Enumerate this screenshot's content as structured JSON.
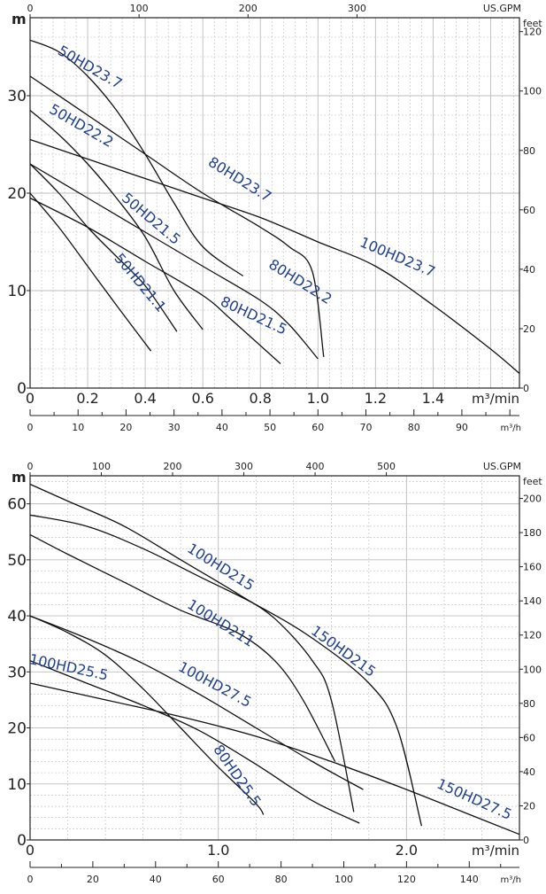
{
  "colors": {
    "curve": "#111111",
    "label": "#1f3f8f",
    "grid": "#bdbdbd",
    "text": "#222222"
  },
  "chart_data": [
    {
      "type": "line",
      "grid": true,
      "x_unit": "m³/min",
      "xlim": [
        0,
        1.7
      ],
      "x_ticks": [
        "0",
        "0.2",
        "0.4",
        "0.6",
        "0.8",
        "1.0",
        "1.2",
        "1.4"
      ],
      "x_tick_values": [
        0,
        0.2,
        0.4,
        0.6,
        0.8,
        1.0,
        1.2,
        1.4
      ],
      "y_unit": "m",
      "ylim": [
        0,
        38
      ],
      "y_ticks": [
        "0",
        "10",
        "20",
        "30"
      ],
      "y_tick_values": [
        0,
        10,
        20,
        30
      ],
      "top_unit": "US.GPM",
      "top_ticks": [
        "0",
        "100",
        "200",
        "300"
      ],
      "top_tick_values": [
        0,
        100,
        200,
        300
      ],
      "right_unit": "feet",
      "right_ticks": [
        "0",
        "20",
        "40",
        "60",
        "80",
        "100",
        "120"
      ],
      "right_tick_values": [
        0,
        20,
        40,
        60,
        80,
        100,
        120
      ],
      "bottom_unit": "m³/h",
      "bottom_ticks": [
        "0",
        "10",
        "20",
        "30",
        "40",
        "50",
        "60",
        "70",
        "80",
        "90"
      ],
      "bottom_tick_values": [
        0,
        10,
        20,
        30,
        40,
        50,
        60,
        70,
        80,
        90
      ],
      "series": [
        {
          "name": "50HD23.7",
          "label_at": [
            0.2,
            32.5
          ],
          "label_angle": 30,
          "points": [
            [
              0,
              35.7
            ],
            [
              0.1,
              34.5
            ],
            [
              0.2,
              32
            ],
            [
              0.3,
              28.5
            ],
            [
              0.4,
              24
            ],
            [
              0.5,
              19
            ],
            [
              0.6,
              14.5
            ],
            [
              0.74,
              11.5
            ]
          ]
        },
        {
          "name": "50HD22.2",
          "label_at": [
            0.17,
            26.5
          ],
          "label_angle": 30,
          "points": [
            [
              0,
              28.5
            ],
            [
              0.1,
              26
            ],
            [
              0.2,
              23
            ],
            [
              0.3,
              19.5
            ],
            [
              0.4,
              15.5
            ],
            [
              0.5,
              10
            ],
            [
              0.6,
              6
            ]
          ]
        },
        {
          "name": "50HD21.5",
          "label_at": [
            0.41,
            17
          ],
          "label_angle": 40,
          "points": [
            [
              0,
              23
            ],
            [
              0.1,
              20
            ],
            [
              0.2,
              16.5
            ],
            [
              0.3,
              13.5
            ],
            [
              0.4,
              10.5
            ],
            [
              0.51,
              5.8
            ]
          ]
        },
        {
          "name": "50HD21.1",
          "label_at": [
            0.37,
            10.5
          ],
          "label_angle": 50,
          "points": [
            [
              0,
              20
            ],
            [
              0.1,
              16.5
            ],
            [
              0.2,
              12.5
            ],
            [
              0.3,
              8.5
            ],
            [
              0.42,
              3.8
            ]
          ]
        },
        {
          "name": "80HD23.7",
          "label_at": [
            0.72,
            21
          ],
          "label_angle": 32,
          "points": [
            [
              0,
              32
            ],
            [
              0.2,
              28
            ],
            [
              0.4,
              24
            ],
            [
              0.6,
              20
            ],
            [
              0.8,
              16.5
            ],
            [
              0.9,
              14.5
            ],
            [
              0.98,
              12
            ],
            [
              1.02,
              3.2
            ]
          ]
        },
        {
          "name": "80HD22.2",
          "label_at": [
            0.93,
            10.5
          ],
          "label_angle": 32,
          "points": [
            [
              0,
              23
            ],
            [
              0.2,
              19.5
            ],
            [
              0.4,
              16
            ],
            [
              0.6,
              12.5
            ],
            [
              0.8,
              9
            ],
            [
              0.9,
              6.5
            ],
            [
              1.0,
              3
            ]
          ]
        },
        {
          "name": "80HD21.5",
          "label_at": [
            0.77,
            7
          ],
          "label_angle": 25,
          "points": [
            [
              0,
              19.5
            ],
            [
              0.2,
              16.5
            ],
            [
              0.4,
              13
            ],
            [
              0.6,
              9.5
            ],
            [
              0.7,
              7
            ],
            [
              0.87,
              2.5
            ]
          ]
        },
        {
          "name": "100HD23.7",
          "label_at": [
            1.27,
            13
          ],
          "label_angle": 23,
          "points": [
            [
              0,
              25.5
            ],
            [
              0.2,
              23.5
            ],
            [
              0.4,
              21.5
            ],
            [
              0.6,
              19.5
            ],
            [
              0.8,
              17.5
            ],
            [
              1.0,
              15
            ],
            [
              1.2,
              12.5
            ],
            [
              1.4,
              8.5
            ],
            [
              1.6,
              4
            ],
            [
              1.7,
              1.5
            ]
          ]
        }
      ]
    },
    {
      "type": "line",
      "grid": true,
      "x_unit": "m³/min",
      "xlim": [
        0,
        2.6
      ],
      "x_ticks": [
        "0",
        "1.0",
        "2.0"
      ],
      "x_tick_values": [
        0,
        1.0,
        2.0
      ],
      "y_unit": "m",
      "ylim": [
        0,
        65
      ],
      "y_ticks": [
        "0",
        "10",
        "20",
        "30",
        "40",
        "50",
        "60"
      ],
      "y_tick_values": [
        0,
        10,
        20,
        30,
        40,
        50,
        60
      ],
      "top_unit": "US.GPM",
      "top_ticks": [
        "0",
        "100",
        "200",
        "300",
        "400",
        "500"
      ],
      "top_tick_values": [
        0,
        100,
        200,
        300,
        400,
        500
      ],
      "right_unit": "feet",
      "right_ticks": [
        "0",
        "20",
        "40",
        "60",
        "80",
        "100",
        "120",
        "140",
        "160",
        "180",
        "200"
      ],
      "right_tick_values": [
        0,
        20,
        40,
        60,
        80,
        100,
        120,
        140,
        160,
        180,
        200
      ],
      "bottom_unit": "m³/h",
      "bottom_ticks": [
        "0",
        "20",
        "40",
        "60",
        "80",
        "100",
        "120",
        "140"
      ],
      "bottom_tick_values": [
        0,
        20,
        40,
        60,
        80,
        100,
        120,
        140
      ],
      "series": [
        {
          "name": "100HD215",
          "label_at": [
            1.0,
            48
          ],
          "label_angle": 32,
          "points": [
            [
              0,
              63.5
            ],
            [
              0.2,
              60.5
            ],
            [
              0.5,
              56
            ],
            [
              0.8,
              50
            ],
            [
              1.1,
              44
            ],
            [
              1.3,
              39.5
            ],
            [
              1.5,
              32
            ],
            [
              1.6,
              25
            ],
            [
              1.72,
              5
            ]
          ]
        },
        {
          "name": "100HD211",
          "label_at": [
            1.0,
            38
          ],
          "label_angle": 32,
          "points": [
            [
              0,
              54.5
            ],
            [
              0.2,
              51
            ],
            [
              0.5,
              46
            ],
            [
              0.8,
              41
            ],
            [
              1.1,
              37
            ],
            [
              1.3,
              32
            ],
            [
              1.45,
              25
            ],
            [
              1.62,
              14
            ]
          ]
        },
        {
          "name": "150HD215",
          "label_at": [
            1.65,
            33
          ],
          "label_angle": 36,
          "points": [
            [
              0,
              58
            ],
            [
              0.3,
              56
            ],
            [
              0.6,
              52
            ],
            [
              0.9,
              47
            ],
            [
              1.2,
              42
            ],
            [
              1.5,
              36
            ],
            [
              1.8,
              28
            ],
            [
              1.95,
              20
            ],
            [
              2.08,
              2.5
            ]
          ]
        },
        {
          "name": "100HD27.5",
          "label_at": [
            0.97,
            27
          ],
          "label_angle": 28,
          "points": [
            [
              0,
              40
            ],
            [
              0.3,
              36
            ],
            [
              0.6,
              31.5
            ],
            [
              0.9,
              26
            ],
            [
              1.2,
              20
            ],
            [
              1.5,
              14
            ],
            [
              1.77,
              9
            ]
          ]
        },
        {
          "name": "100HD25.5",
          "label_at": [
            0.2,
            30
          ],
          "label_angle": 12,
          "points": [
            [
              0,
              32
            ],
            [
              0.3,
              28
            ],
            [
              0.6,
              24
            ],
            [
              0.9,
              19.5
            ],
            [
              1.2,
              13.5
            ],
            [
              1.5,
              7
            ],
            [
              1.75,
              3
            ]
          ]
        },
        {
          "name": "80HD25.5",
          "label_at": [
            1.08,
            11
          ],
          "label_angle": 55,
          "points": [
            [
              0,
              40
            ],
            [
              0.2,
              37
            ],
            [
              0.4,
              33
            ],
            [
              0.6,
              27
            ],
            [
              0.8,
              20
            ],
            [
              1.0,
              13
            ],
            [
              1.2,
              6.5
            ],
            [
              1.24,
              4.5
            ]
          ]
        },
        {
          "name": "150HD27.5",
          "label_at": [
            2.35,
            6.5
          ],
          "label_angle": 24,
          "points": [
            [
              0,
              28
            ],
            [
              0.4,
              25
            ],
            [
              0.8,
              22
            ],
            [
              1.2,
              18.5
            ],
            [
              1.6,
              14
            ],
            [
              2.0,
              9
            ],
            [
              2.3,
              5
            ],
            [
              2.6,
              1
            ]
          ]
        }
      ]
    }
  ]
}
